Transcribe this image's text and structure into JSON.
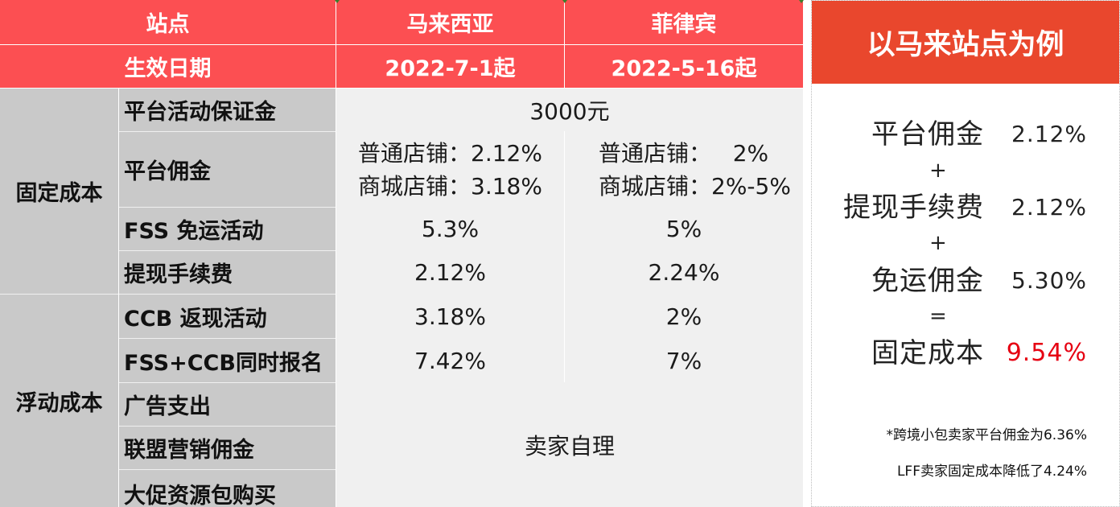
{
  "table": {
    "header": {
      "site_label": "站点",
      "malaysia": "马来西亚",
      "philippines": "菲律宾",
      "date_label": "生效日期",
      "malaysia_date": "2022-7-1起",
      "philippines_date": "2022-5-16起"
    },
    "fixed_cost": {
      "category": "固定成本",
      "deposit_label": "平台活动保证金",
      "deposit_value": "3000元",
      "commission_label": "平台佣金",
      "my_commission_line1": "普通店铺：2.12%",
      "my_commission_line2": "商城店铺：3.18%",
      "ph_commission_line1": "普通店铺：   2%",
      "ph_commission_line2": "商城店铺：2%-5%",
      "fss_label": "FSS 免运活动",
      "fss_my": "5.3%",
      "fss_ph": "5%",
      "withdraw_label": "提现手续费",
      "withdraw_my": "2.12%",
      "withdraw_ph": "2.24%"
    },
    "floating_cost": {
      "category": "浮动成本",
      "ccb_label": "CCB 返现活动",
      "ccb_my": "3.18%",
      "ccb_ph": "2%",
      "fss_ccb_label": "FSS+CCB同时报名",
      "fss_ccb_my": "7.42%",
      "fss_ccb_ph": "7%",
      "ads_label": "广告支出",
      "affiliate_label": "联盟营销佣金",
      "promo_label": "大促资源包购买",
      "self_managed": "卖家自理"
    }
  },
  "panel": {
    "title": "以马来站点为例",
    "rows": [
      {
        "name": "平台佣金",
        "value": "2.12%"
      },
      {
        "name": "提现手续费",
        "value": "2.12%"
      },
      {
        "name": "免运佣金",
        "value": "5.30%"
      },
      {
        "name": "固定成本",
        "value": "9.54%"
      }
    ],
    "plus": "+",
    "equals": "=",
    "note1": "*跨境小包卖家平台佣金为6.36%",
    "note2": "LFF卖家固定成本降低了4.24%",
    "highlight_color": "#e60012",
    "header_color": "#e9472d"
  }
}
